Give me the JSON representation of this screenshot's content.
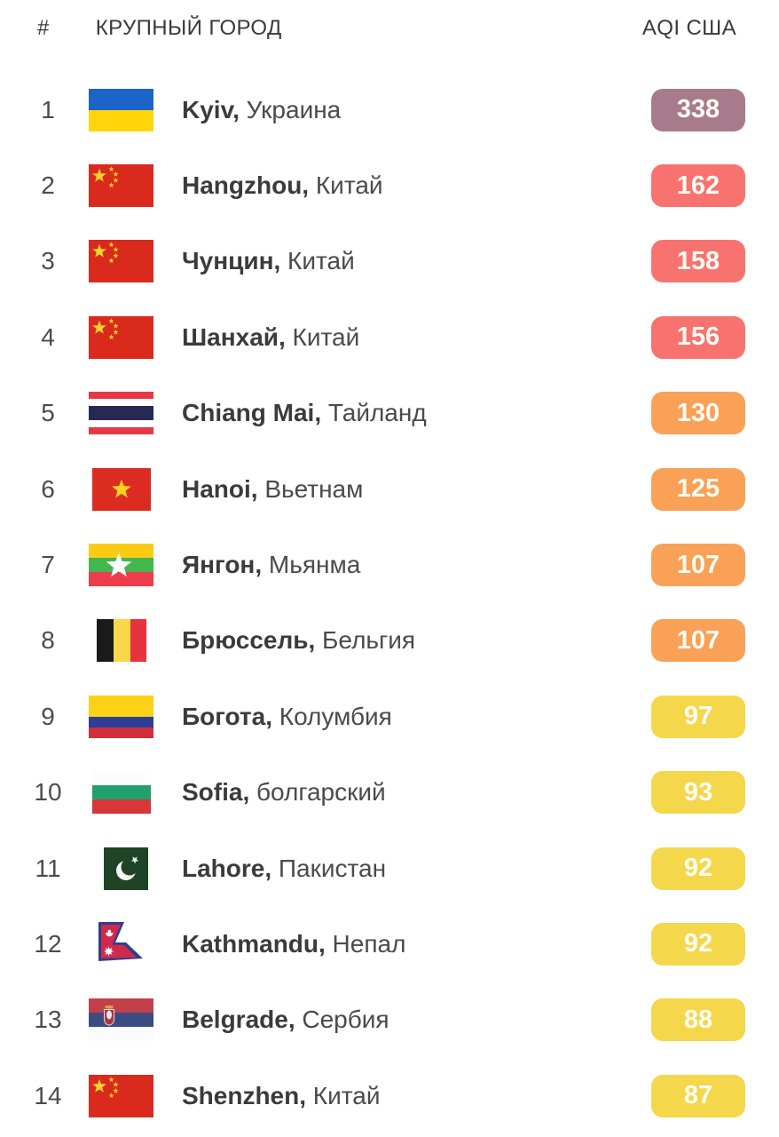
{
  "header": {
    "rank_label": "#",
    "city_label": "КРУПНЫЙ ГОРОД",
    "aqi_label": "AQI США"
  },
  "aqi_level_colors": {
    "hazardous": "#a87b8c",
    "unhealthy": "#f87370",
    "unhealthy_sensitive": "#f9a157",
    "moderate": "#f5d74b"
  },
  "badge_text_color": "#fffdf4",
  "rows": [
    {
      "rank": "1",
      "city": "Kyiv",
      "country": "Украина",
      "flag": "ukraine",
      "flag_icon": "ukraine-flag",
      "aqi": "338",
      "level": "hazardous",
      "color": "#a87b8c"
    },
    {
      "rank": "2",
      "city": "Hangzhou",
      "country": "Китай",
      "flag": "china",
      "flag_icon": "china-flag",
      "aqi": "162",
      "level": "unhealthy",
      "color": "#f87370"
    },
    {
      "rank": "3",
      "city": "Чунцин",
      "country": "Китай",
      "flag": "china",
      "flag_icon": "china-flag",
      "aqi": "158",
      "level": "unhealthy",
      "color": "#f87370"
    },
    {
      "rank": "4",
      "city": "Шанхай",
      "country": "Китай",
      "flag": "china",
      "flag_icon": "china-flag",
      "aqi": "156",
      "level": "unhealthy",
      "color": "#f87370"
    },
    {
      "rank": "5",
      "city": "Chiang Mai",
      "country": "Тайланд",
      "flag": "thailand",
      "flag_icon": "thailand-flag",
      "aqi": "130",
      "level": "unhealthy_sensitive",
      "color": "#f9a157"
    },
    {
      "rank": "6",
      "city": "Hanoi",
      "country": "Вьетнам",
      "flag": "vietnam",
      "flag_icon": "vietnam-flag",
      "aqi": "125",
      "level": "unhealthy_sensitive",
      "color": "#f9a157"
    },
    {
      "rank": "7",
      "city": "Янгон",
      "country": "Мьянма",
      "flag": "myanmar",
      "flag_icon": "myanmar-flag",
      "aqi": "107",
      "level": "unhealthy_sensitive",
      "color": "#f9a157"
    },
    {
      "rank": "8",
      "city": "Брюссель",
      "country": "Бельгия",
      "flag": "belgium",
      "flag_icon": "belgium-flag",
      "aqi": "107",
      "level": "unhealthy_sensitive",
      "color": "#f9a157"
    },
    {
      "rank": "9",
      "city": "Богота",
      "country": "Колумбия",
      "flag": "colombia",
      "flag_icon": "colombia-flag",
      "aqi": "97",
      "level": "moderate",
      "color": "#f5d74b"
    },
    {
      "rank": "10",
      "city": "Sofia",
      "country": "болгарский",
      "flag": "bulgaria",
      "flag_icon": "bulgaria-flag",
      "aqi": "93",
      "level": "moderate",
      "color": "#f5d74b"
    },
    {
      "rank": "11",
      "city": "Lahore",
      "country": "Пакистан",
      "flag": "pakistan",
      "flag_icon": "pakistan-flag",
      "aqi": "92",
      "level": "moderate",
      "color": "#f5d74b"
    },
    {
      "rank": "12",
      "city": "Kathmandu",
      "country": "Непал",
      "flag": "nepal",
      "flag_icon": "nepal-flag",
      "aqi": "92",
      "level": "moderate",
      "color": "#f5d74b"
    },
    {
      "rank": "13",
      "city": "Belgrade",
      "country": "Сербия",
      "flag": "serbia",
      "flag_icon": "serbia-flag",
      "aqi": "88",
      "level": "moderate",
      "color": "#f5d74b"
    },
    {
      "rank": "14",
      "city": "Shenzhen",
      "country": "Китай",
      "flag": "china",
      "flag_icon": "china-flag",
      "aqi": "87",
      "level": "moderate",
      "color": "#f5d74b"
    }
  ]
}
